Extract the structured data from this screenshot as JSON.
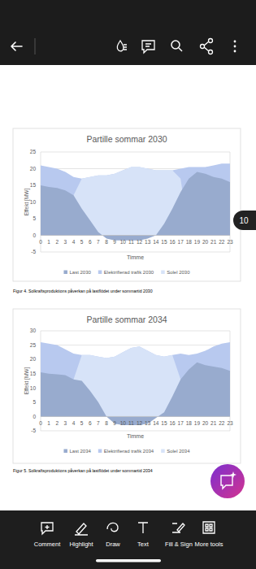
{
  "page": {
    "page_number": "10",
    "bottom_toolbar": [
      "Comment",
      "Highlight",
      "Draw",
      "Text",
      "Fill & Sign",
      "More tools"
    ]
  },
  "captions": [
    "Figur 4. Solkraftsproduktions påverkan på lastflödet under sommartid 2030",
    "Figur 5. Solkraftsproduktions påverkan på lastflödet under sommartid 2034"
  ],
  "chart_data": [
    {
      "type": "area",
      "title": "Partille sommar 2030",
      "x_label": "Timme",
      "y_label": "Effekt [MW]",
      "x": [
        0,
        1,
        2,
        3,
        4,
        5,
        6,
        7,
        8,
        9,
        10,
        11,
        12,
        13,
        14,
        15,
        16,
        17,
        18,
        19,
        20,
        21,
        22,
        23
      ],
      "xlim": [
        0,
        23
      ],
      "xticks": [
        0,
        1,
        2,
        3,
        4,
        5,
        6,
        7,
        8,
        9,
        10,
        11,
        12,
        13,
        14,
        15,
        16,
        17,
        18,
        19,
        20,
        21,
        22,
        23
      ],
      "ylim": [
        -5,
        25
      ],
      "yticks": [
        -5,
        0,
        5,
        10,
        15,
        20,
        25
      ],
      "grid": true,
      "legend": "bottom",
      "stacked": false,
      "series": [
        {
          "name": "Last 2030",
          "color": "#98abce",
          "values": [
            15,
            14.5,
            14.2,
            13.5,
            12,
            8,
            4.5,
            1,
            -1,
            -1.5,
            -1.5,
            -1.5,
            -1.5,
            -1,
            0,
            3.5,
            8,
            13,
            17,
            19,
            18.5,
            17.5,
            17,
            16
          ]
        },
        {
          "name": "Elektrifierad trafik 2030",
          "color": "#b8c9ef",
          "values": [
            21,
            20.5,
            20,
            19,
            17.5,
            17,
            17.5,
            18,
            18,
            18.5,
            19.5,
            20.5,
            20.5,
            20,
            19.5,
            19.5,
            19.5,
            20,
            20.5,
            20.5,
            20.5,
            21,
            21.5,
            21.5
          ]
        },
        {
          "name": "Solel 2030",
          "color": "#d7e3f8",
          "values": [
            0,
            0,
            0,
            0,
            12,
            17,
            17.5,
            18,
            18,
            18.5,
            19.5,
            20.5,
            20.5,
            20,
            19.5,
            19.5,
            19.5,
            17,
            0,
            0,
            0,
            0,
            0,
            0
          ]
        }
      ]
    },
    {
      "type": "area",
      "title": "Partille sommar 2034",
      "x_label": "Timme",
      "y_label": "Effekt [MW]",
      "x": [
        0,
        1,
        2,
        3,
        4,
        5,
        6,
        7,
        8,
        9,
        10,
        11,
        12,
        13,
        14,
        15,
        16,
        17,
        18,
        19,
        20,
        21,
        22,
        23
      ],
      "xlim": [
        0,
        23
      ],
      "xticks": [
        0,
        1,
        2,
        3,
        4,
        5,
        6,
        7,
        8,
        9,
        10,
        11,
        12,
        13,
        14,
        15,
        16,
        17,
        18,
        19,
        20,
        21,
        22,
        23
      ],
      "ylim": [
        -5,
        30
      ],
      "yticks": [
        -5,
        0,
        5,
        10,
        15,
        20,
        25,
        30
      ],
      "grid": true,
      "legend": "bottom",
      "stacked": false,
      "series": [
        {
          "name": "Last 2034",
          "color": "#98abce",
          "values": [
            15.5,
            15,
            14.8,
            14.5,
            13,
            12.5,
            9,
            5,
            0,
            -2.5,
            -3,
            -3,
            -3,
            -2.5,
            -0.5,
            1.5,
            7,
            13,
            16.5,
            19,
            18,
            17.5,
            17,
            16
          ]
        },
        {
          "name": "Elektrifierad trafik 2034",
          "color": "#b8c9ef",
          "values": [
            26,
            25.5,
            25,
            23.5,
            22,
            21.5,
            21.5,
            21,
            20.5,
            21,
            22.5,
            24,
            24.5,
            23,
            21.5,
            21,
            21.5,
            22,
            21.5,
            22,
            23,
            24.5,
            25.5,
            26
          ]
        },
        {
          "name": "Solel 2034",
          "color": "#d7e3f8",
          "values": [
            0,
            0,
            0,
            0,
            13,
            21.5,
            21.5,
            21,
            20.5,
            21,
            22.5,
            24,
            24.5,
            23,
            21.5,
            21,
            21.5,
            13,
            0,
            0,
            0,
            0,
            0,
            0
          ]
        }
      ]
    }
  ]
}
